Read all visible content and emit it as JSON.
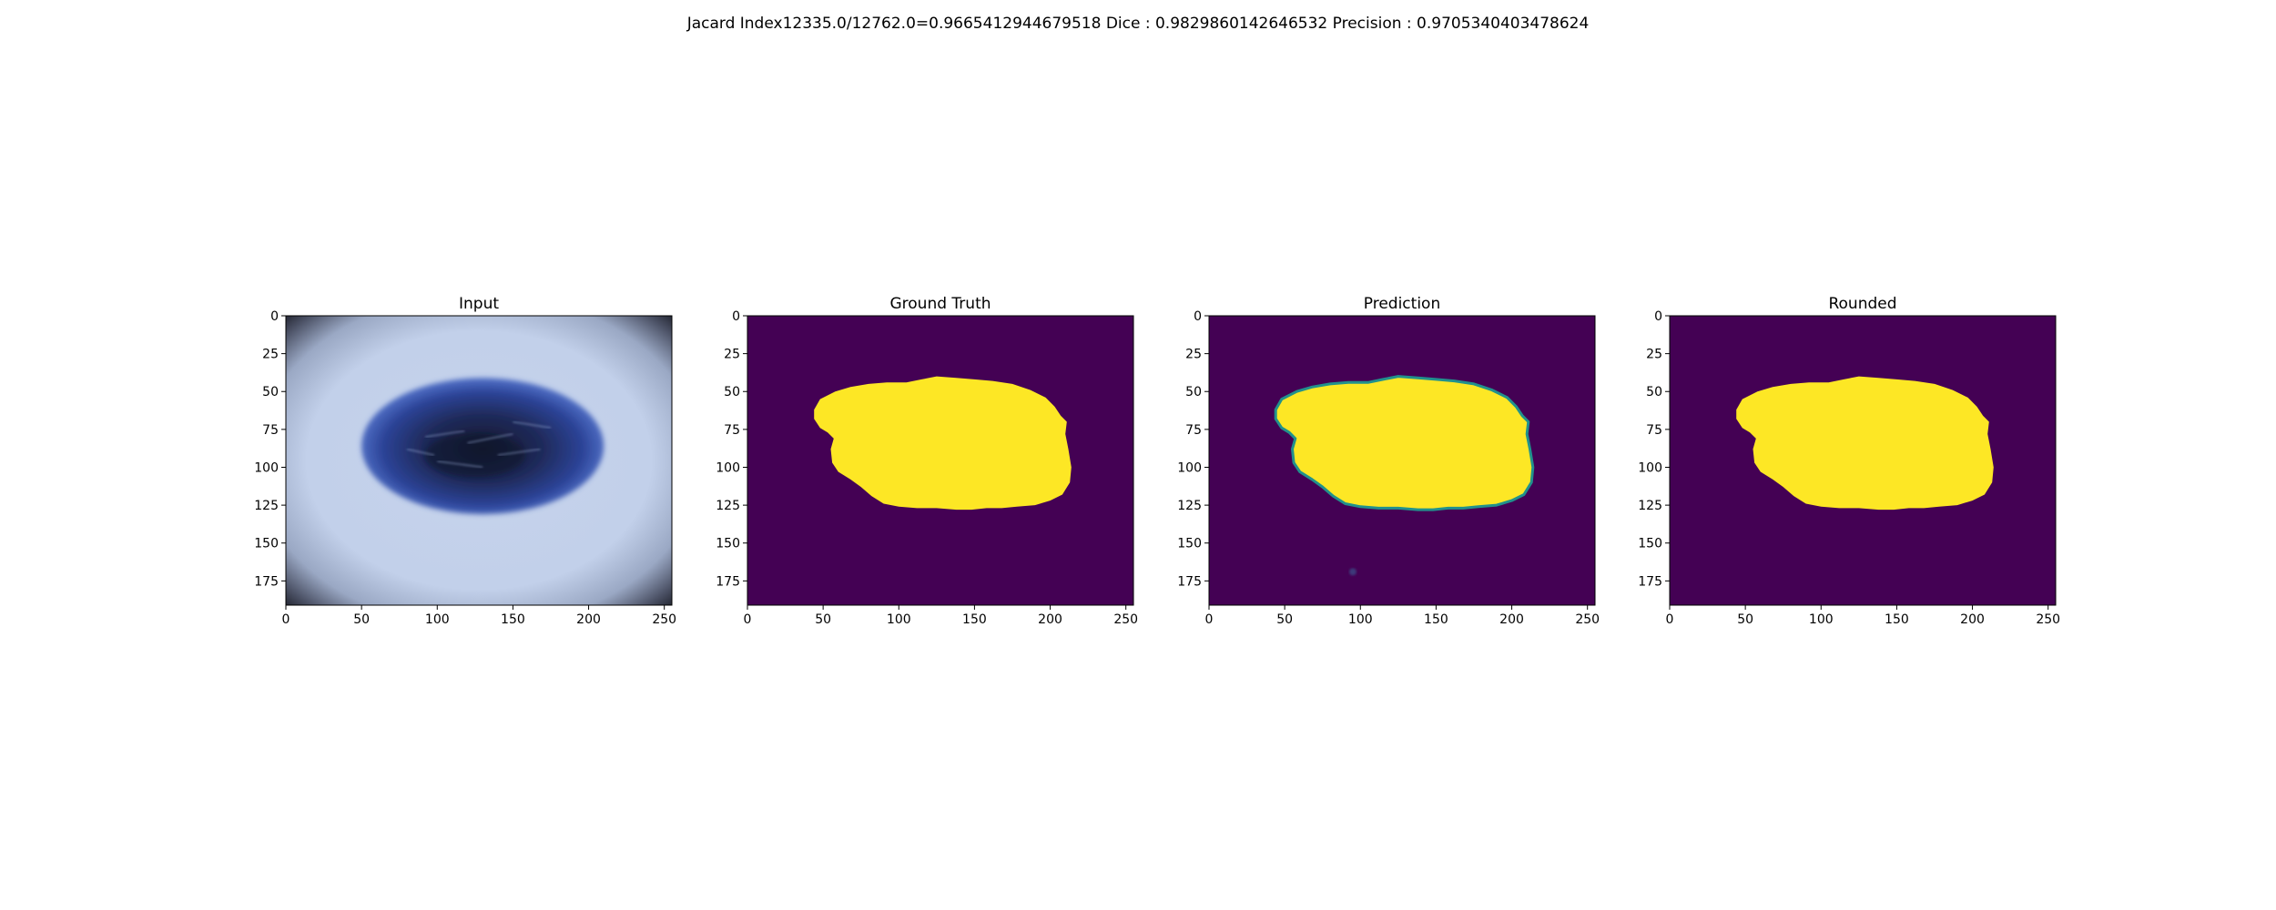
{
  "figure": {
    "suptitle": "Jacard Index12335.0/12762.0=0.9665412944679518 Dice : 0.9829860142646532 Precision : 0.9705340403478624"
  },
  "colors": {
    "background": "#440154",
    "foreground": "#fde725",
    "edge": "#21918c"
  },
  "chart_data": [
    {
      "type": "heatmap",
      "title": "Input",
      "xlim": [
        0,
        255
      ],
      "ylim": [
        191,
        0
      ],
      "xticks": [
        0,
        50,
        100,
        150,
        200,
        250
      ],
      "yticks": [
        0,
        25,
        50,
        75,
        100,
        125,
        150,
        175
      ],
      "xticklabels": [
        "0",
        "50",
        "100",
        "150",
        "200",
        "250"
      ],
      "yticklabels": [
        "0",
        "25",
        "50",
        "75",
        "100",
        "125",
        "150",
        "175"
      ]
    },
    {
      "type": "heatmap",
      "title": "Ground Truth",
      "xlim": [
        0,
        255
      ],
      "ylim": [
        191,
        0
      ],
      "xticks": [
        0,
        50,
        100,
        150,
        200,
        250
      ],
      "yticks": [
        0,
        25,
        50,
        75,
        100,
        125,
        150,
        175
      ],
      "xticklabels": [
        "0",
        "50",
        "100",
        "150",
        "200",
        "250"
      ],
      "yticklabels": [
        "0",
        "25",
        "50",
        "75",
        "100",
        "125",
        "150",
        "175"
      ],
      "mask_outline": [
        [
          44,
          62
        ],
        [
          48,
          55
        ],
        [
          58,
          50
        ],
        [
          68,
          47
        ],
        [
          80,
          45
        ],
        [
          92,
          44
        ],
        [
          105,
          44
        ],
        [
          115,
          42
        ],
        [
          125,
          40
        ],
        [
          138,
          41
        ],
        [
          150,
          42
        ],
        [
          162,
          43
        ],
        [
          175,
          45
        ],
        [
          187,
          49
        ],
        [
          197,
          54
        ],
        [
          203,
          60
        ],
        [
          207,
          66
        ],
        [
          211,
          70
        ],
        [
          210,
          78
        ],
        [
          212,
          88
        ],
        [
          214,
          100
        ],
        [
          213,
          110
        ],
        [
          208,
          118
        ],
        [
          200,
          122
        ],
        [
          190,
          125
        ],
        [
          178,
          126
        ],
        [
          168,
          127
        ],
        [
          158,
          127
        ],
        [
          148,
          128
        ],
        [
          138,
          128
        ],
        [
          125,
          127
        ],
        [
          112,
          127
        ],
        [
          100,
          126
        ],
        [
          90,
          124
        ],
        [
          82,
          119
        ],
        [
          75,
          113
        ],
        [
          68,
          108
        ],
        [
          60,
          103
        ],
        [
          56,
          97
        ],
        [
          55,
          88
        ],
        [
          57,
          81
        ],
        [
          53,
          77
        ],
        [
          48,
          74
        ],
        [
          44,
          68
        ]
      ]
    },
    {
      "type": "heatmap",
      "title": "Prediction",
      "xlim": [
        0,
        255
      ],
      "ylim": [
        191,
        0
      ],
      "xticks": [
        0,
        50,
        100,
        150,
        200,
        250
      ],
      "yticks": [
        0,
        25,
        50,
        75,
        100,
        125,
        150,
        175
      ],
      "xticklabels": [
        "0",
        "50",
        "100",
        "150",
        "200",
        "250"
      ],
      "yticklabels": [
        "0",
        "25",
        "50",
        "75",
        "100",
        "125",
        "150",
        "175"
      ],
      "mask_outline": [
        [
          44,
          62
        ],
        [
          48,
          55
        ],
        [
          58,
          50
        ],
        [
          68,
          47
        ],
        [
          80,
          45
        ],
        [
          92,
          44
        ],
        [
          105,
          44
        ],
        [
          115,
          42
        ],
        [
          125,
          40
        ],
        [
          138,
          41
        ],
        [
          150,
          42
        ],
        [
          162,
          43
        ],
        [
          175,
          45
        ],
        [
          187,
          49
        ],
        [
          197,
          54
        ],
        [
          203,
          60
        ],
        [
          207,
          66
        ],
        [
          211,
          70
        ],
        [
          210,
          78
        ],
        [
          212,
          88
        ],
        [
          214,
          100
        ],
        [
          213,
          110
        ],
        [
          208,
          118
        ],
        [
          200,
          122
        ],
        [
          190,
          125
        ],
        [
          178,
          126
        ],
        [
          168,
          127
        ],
        [
          158,
          127
        ],
        [
          148,
          128
        ],
        [
          138,
          128
        ],
        [
          125,
          127
        ],
        [
          112,
          127
        ],
        [
          100,
          126
        ],
        [
          90,
          124
        ],
        [
          82,
          119
        ],
        [
          75,
          113
        ],
        [
          68,
          108
        ],
        [
          60,
          103
        ],
        [
          56,
          97
        ],
        [
          55,
          88
        ],
        [
          57,
          81
        ],
        [
          53,
          77
        ],
        [
          48,
          74
        ],
        [
          44,
          68
        ]
      ],
      "spot": [
        95,
        169
      ]
    },
    {
      "type": "heatmap",
      "title": "Rounded",
      "xlim": [
        0,
        255
      ],
      "ylim": [
        191,
        0
      ],
      "xticks": [
        0,
        50,
        100,
        150,
        200,
        250
      ],
      "yticks": [
        0,
        25,
        50,
        75,
        100,
        125,
        150,
        175
      ],
      "xticklabels": [
        "0",
        "50",
        "100",
        "150",
        "200",
        "250"
      ],
      "yticklabels": [
        "0",
        "25",
        "50",
        "75",
        "100",
        "125",
        "150",
        "175"
      ],
      "mask_outline": [
        [
          44,
          62
        ],
        [
          48,
          55
        ],
        [
          58,
          50
        ],
        [
          68,
          47
        ],
        [
          80,
          45
        ],
        [
          92,
          44
        ],
        [
          105,
          44
        ],
        [
          115,
          42
        ],
        [
          125,
          40
        ],
        [
          138,
          41
        ],
        [
          150,
          42
        ],
        [
          162,
          43
        ],
        [
          175,
          45
        ],
        [
          187,
          49
        ],
        [
          197,
          54
        ],
        [
          203,
          60
        ],
        [
          207,
          66
        ],
        [
          211,
          70
        ],
        [
          210,
          78
        ],
        [
          212,
          88
        ],
        [
          214,
          100
        ],
        [
          213,
          110
        ],
        [
          208,
          118
        ],
        [
          200,
          122
        ],
        [
          190,
          125
        ],
        [
          178,
          126
        ],
        [
          168,
          127
        ],
        [
          158,
          127
        ],
        [
          148,
          128
        ],
        [
          138,
          128
        ],
        [
          125,
          127
        ],
        [
          112,
          127
        ],
        [
          100,
          126
        ],
        [
          90,
          124
        ],
        [
          82,
          119
        ],
        [
          75,
          113
        ],
        [
          68,
          108
        ],
        [
          60,
          103
        ],
        [
          56,
          97
        ],
        [
          55,
          88
        ],
        [
          57,
          81
        ],
        [
          53,
          77
        ],
        [
          48,
          74
        ],
        [
          44,
          68
        ]
      ]
    }
  ]
}
